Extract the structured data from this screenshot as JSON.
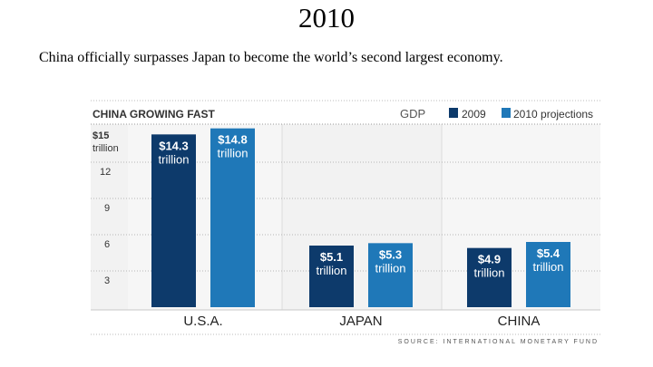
{
  "slide": {
    "title": "2010",
    "subtitle": "China officially surpasses Japan to become the world’s second largest economy."
  },
  "chart_data": {
    "type": "bar",
    "title": "CHINA GROWING FAST",
    "metric_label": "GDP",
    "categories": [
      "U.S.A.",
      "JAPAN",
      "CHINA"
    ],
    "series": [
      {
        "name": "2009",
        "color": "#0d3a6b",
        "values": [
          14.3,
          5.1,
          4.9
        ],
        "labels": [
          "$14.3",
          "$5.1",
          "$4.9"
        ]
      },
      {
        "name": "2010 projections",
        "color": "#1f78b8",
        "values": [
          14.8,
          5.3,
          5.4
        ],
        "labels": [
          "$14.8",
          "$5.3",
          "$5.4"
        ]
      }
    ],
    "value_unit": "trillion",
    "y_ticks": [
      {
        "value": 15,
        "label": "$15"
      },
      {
        "value": 12,
        "label": "12"
      },
      {
        "value": 9,
        "label": "9"
      },
      {
        "value": 6,
        "label": "6"
      },
      {
        "value": 3,
        "label": "3"
      }
    ],
    "y_top_unit": "trillion",
    "ylim": [
      0,
      15
    ],
    "source": "SOURCE: INTERNATIONAL MONETARY FUND"
  }
}
